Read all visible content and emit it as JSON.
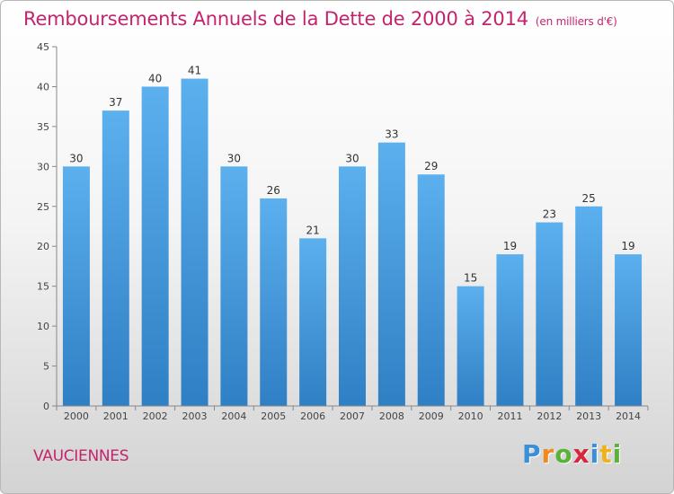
{
  "header": {
    "title": "Remboursements Annuels de la Dette de 2000 à 2014",
    "subtitle": "(en milliers d'€)"
  },
  "footer": {
    "commune": "VAUCIENNES",
    "logo_text": "Proxiti"
  },
  "colors": {
    "title": "#c4246d",
    "bar_light": "#5cb0ee",
    "bar_dark": "#2f7fc4"
  },
  "chart_data": {
    "type": "bar",
    "title": "Remboursements Annuels de la Dette de 2000 à 2014",
    "subtitle": "(en milliers d'€)",
    "xlabel": "",
    "ylabel": "",
    "categories": [
      "2000",
      "2001",
      "2002",
      "2003",
      "2004",
      "2005",
      "2006",
      "2007",
      "2008",
      "2009",
      "2010",
      "2011",
      "2012",
      "2013",
      "2014"
    ],
    "values": [
      30,
      37,
      40,
      41,
      30,
      26,
      21,
      30,
      33,
      29,
      15,
      19,
      23,
      25,
      19
    ],
    "ylim": [
      0,
      45
    ],
    "yticks": [
      0,
      5,
      10,
      15,
      20,
      25,
      30,
      35,
      40,
      45
    ],
    "grid": false,
    "data_labels": true
  }
}
